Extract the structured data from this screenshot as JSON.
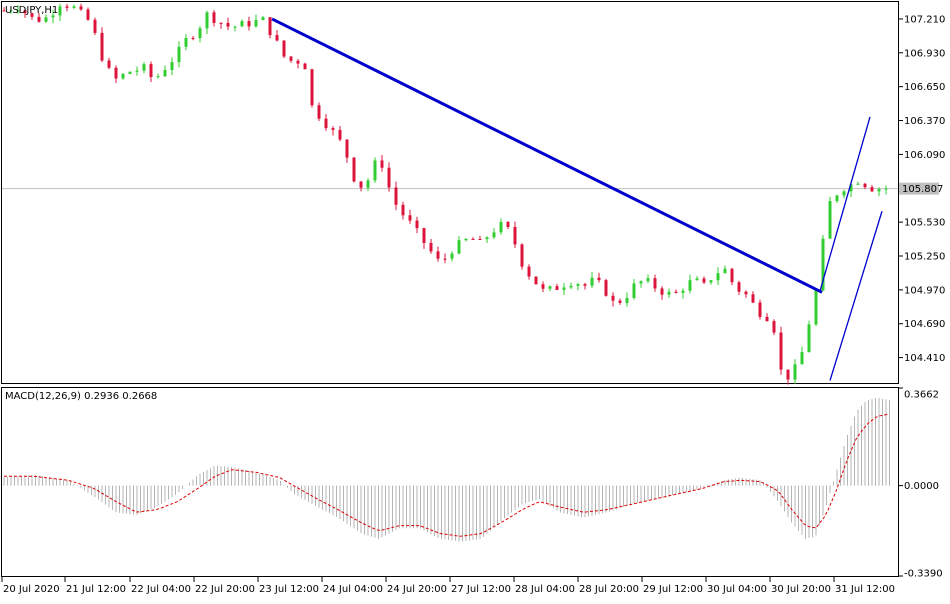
{
  "main": {
    "symbol_label": "USDJPY,H1",
    "price_ticks": [
      "107.210",
      "106.930",
      "106.650",
      "106.370",
      "106.090",
      "105.530",
      "105.250",
      "104.970",
      "104.690",
      "104.410"
    ],
    "current_price": "105.807",
    "price_range": [
      104.2,
      107.35
    ]
  },
  "macd": {
    "label": "MACD(12,26,9) 0.2936 0.2668",
    "ticks": [
      "0.3662",
      "0.0000",
      "-0.3390"
    ],
    "range": [
      -0.339,
      0.3662
    ]
  },
  "time_axis": [
    "20 Jul 2020",
    "21 Jul 12:00",
    "22 Jul 04:00",
    "22 Jul 20:00",
    "23 Jul 12:00",
    "24 Jul 04:00",
    "24 Jul 20:00",
    "27 Jul 12:00",
    "28 Jul 04:00",
    "28 Jul 20:00",
    "29 Jul 12:00",
    "30 Jul 04:00",
    "30 Jul 20:00",
    "31 Jul 12:00"
  ],
  "colors": {
    "bull": "#32cd32",
    "bear": "#dc143c",
    "trendline": "#0000cd",
    "channel": "#0000cd",
    "signal": "#e00000",
    "histogram": "#b4b4b4",
    "price_line": "#c0c0c0"
  },
  "chart_data": [
    {
      "type": "candlestick",
      "title": "USDJPY,H1",
      "ylim": [
        104.2,
        107.35
      ],
      "ticks": [
        107.21,
        106.93,
        106.65,
        106.37,
        106.09,
        105.53,
        105.25,
        104.97,
        104.69,
        104.41
      ],
      "current_price": 105.807,
      "close_path": [
        [
          0,
          107.28
        ],
        [
          8,
          107.32
        ],
        [
          18,
          107.2
        ],
        [
          26,
          107.22
        ],
        [
          34,
          107.35
        ],
        [
          42,
          107.3
        ],
        [
          52,
          107.18
        ],
        [
          60,
          106.85
        ],
        [
          66,
          106.7
        ],
        [
          76,
          106.78
        ],
        [
          84,
          106.8
        ],
        [
          90,
          106.7
        ],
        [
          96,
          106.8
        ],
        [
          104,
          106.92
        ],
        [
          110,
          107.05
        ],
        [
          116,
          107.12
        ],
        [
          122,
          107.25
        ],
        [
          128,
          107.2
        ],
        [
          134,
          107.15
        ],
        [
          140,
          107.15
        ],
        [
          148,
          107.18
        ],
        [
          156,
          107.2
        ],
        [
          162,
          107.05
        ],
        [
          168,
          106.9
        ],
        [
          174,
          106.85
        ],
        [
          180,
          106.88
        ],
        [
          184,
          106.5
        ],
        [
          190,
          106.4
        ],
        [
          196,
          106.3
        ],
        [
          204,
          106.15
        ],
        [
          210,
          105.9
        ],
        [
          216,
          105.8
        ],
        [
          222,
          106.0
        ],
        [
          226,
          106.05
        ],
        [
          230,
          105.85
        ],
        [
          236,
          105.65
        ],
        [
          242,
          105.55
        ],
        [
          250,
          105.4
        ],
        [
          258,
          105.25
        ],
        [
          262,
          105.18
        ],
        [
          268,
          105.3
        ],
        [
          274,
          105.35
        ],
        [
          280,
          105.4
        ],
        [
          286,
          105.35
        ],
        [
          292,
          105.45
        ],
        [
          298,
          105.5
        ],
        [
          304,
          105.45
        ],
        [
          308,
          105.3
        ],
        [
          312,
          105.15
        ],
        [
          318,
          105.05
        ],
        [
          324,
          104.95
        ],
        [
          330,
          104.98
        ],
        [
          336,
          105.02
        ],
        [
          342,
          105.05
        ],
        [
          348,
          105.0
        ],
        [
          354,
          105.05
        ],
        [
          360,
          104.98
        ],
        [
          366,
          104.85
        ],
        [
          372,
          104.9
        ],
        [
          378,
          105.0
        ],
        [
          384,
          105.05
        ],
        [
          390,
          105.0
        ],
        [
          396,
          104.95
        ],
        [
          402,
          104.92
        ],
        [
          408,
          105.0
        ],
        [
          414,
          105.05
        ],
        [
          420,
          105.0
        ],
        [
          426,
          105.1
        ],
        [
          432,
          105.15
        ],
        [
          436,
          105.05
        ],
        [
          440,
          104.98
        ],
        [
          446,
          104.92
        ],
        [
          452,
          104.8
        ],
        [
          458,
          104.75
        ],
        [
          462,
          104.65
        ],
        [
          466,
          104.3
        ],
        [
          470,
          104.25
        ],
        [
          474,
          104.3
        ],
        [
          478,
          104.4
        ],
        [
          482,
          104.65
        ],
        [
          486,
          104.85
        ],
        [
          490,
          105.2
        ],
        [
          494,
          105.65
        ],
        [
          498,
          105.75
        ],
        [
          504,
          105.82
        ],
        [
          510,
          105.85
        ],
        [
          514,
          105.9
        ],
        [
          518,
          105.82
        ],
        [
          524,
          105.81
        ]
      ]
    },
    {
      "type": "bar",
      "title": "MACD(12,26,9) 0.2936 0.2668",
      "ylim": [
        -0.339,
        0.3662
      ],
      "macd_value": 0.2936,
      "signal_value": 0.2668,
      "histogram_path": [
        [
          0,
          0.03
        ],
        [
          20,
          0.04
        ],
        [
          40,
          0.02
        ],
        [
          55,
          -0.04
        ],
        [
          68,
          -0.1
        ],
        [
          80,
          -0.11
        ],
        [
          92,
          -0.08
        ],
        [
          104,
          -0.03
        ],
        [
          116,
          0.04
        ],
        [
          126,
          0.075
        ],
        [
          136,
          0.07
        ],
        [
          150,
          0.05
        ],
        [
          164,
          0.02
        ],
        [
          172,
          -0.03
        ],
        [
          186,
          -0.08
        ],
        [
          198,
          -0.12
        ],
        [
          212,
          -0.18
        ],
        [
          222,
          -0.2
        ],
        [
          234,
          -0.16
        ],
        [
          246,
          -0.16
        ],
        [
          258,
          -0.2
        ],
        [
          270,
          -0.21
        ],
        [
          282,
          -0.2
        ],
        [
          296,
          -0.12
        ],
        [
          306,
          -0.07
        ],
        [
          316,
          -0.05
        ],
        [
          328,
          -0.1
        ],
        [
          342,
          -0.12
        ],
        [
          356,
          -0.1
        ],
        [
          370,
          -0.07
        ],
        [
          384,
          -0.05
        ],
        [
          398,
          -0.03
        ],
        [
          412,
          -0.01
        ],
        [
          424,
          0.02
        ],
        [
          434,
          0.03
        ],
        [
          446,
          0.02
        ],
        [
          456,
          -0.06
        ],
        [
          464,
          -0.14
        ],
        [
          472,
          -0.2
        ],
        [
          478,
          -0.19
        ],
        [
          484,
          -0.08
        ],
        [
          490,
          0.05
        ],
        [
          496,
          0.18
        ],
        [
          502,
          0.28
        ],
        [
          508,
          0.32
        ],
        [
          514,
          0.33
        ],
        [
          522,
          0.32
        ]
      ],
      "signal_path": [
        [
          0,
          0.035
        ],
        [
          20,
          0.035
        ],
        [
          40,
          0.02
        ],
        [
          55,
          -0.01
        ],
        [
          68,
          -0.06
        ],
        [
          80,
          -0.1
        ],
        [
          92,
          -0.09
        ],
        [
          104,
          -0.06
        ],
        [
          116,
          -0.01
        ],
        [
          126,
          0.035
        ],
        [
          136,
          0.06
        ],
        [
          150,
          0.05
        ],
        [
          164,
          0.03
        ],
        [
          172,
          0.0
        ],
        [
          186,
          -0.05
        ],
        [
          198,
          -0.09
        ],
        [
          212,
          -0.14
        ],
        [
          222,
          -0.17
        ],
        [
          234,
          -0.15
        ],
        [
          246,
          -0.15
        ],
        [
          258,
          -0.18
        ],
        [
          270,
          -0.19
        ],
        [
          282,
          -0.18
        ],
        [
          296,
          -0.13
        ],
        [
          306,
          -0.09
        ],
        [
          316,
          -0.06
        ],
        [
          328,
          -0.08
        ],
        [
          342,
          -0.1
        ],
        [
          356,
          -0.09
        ],
        [
          370,
          -0.07
        ],
        [
          384,
          -0.05
        ],
        [
          398,
          -0.03
        ],
        [
          412,
          -0.01
        ],
        [
          424,
          0.015
        ],
        [
          434,
          0.02
        ],
        [
          446,
          0.015
        ],
        [
          456,
          -0.02
        ],
        [
          464,
          -0.09
        ],
        [
          472,
          -0.15
        ],
        [
          478,
          -0.16
        ],
        [
          484,
          -0.11
        ],
        [
          490,
          -0.02
        ],
        [
          496,
          0.09
        ],
        [
          502,
          0.18
        ],
        [
          508,
          0.23
        ],
        [
          514,
          0.26
        ],
        [
          522,
          0.27
        ]
      ]
    }
  ],
  "drawings": {
    "trendline": {
      "p1": [
        272,
        107.21
      ],
      "p2": [
        822,
        104.95
      ]
    },
    "channel_upper": {
      "p1": [
        820,
        104.96
      ],
      "p2": [
        870,
        106.4
      ]
    },
    "channel_lower": {
      "p1": [
        830,
        104.22
      ],
      "p2": [
        882,
        105.62
      ]
    }
  }
}
